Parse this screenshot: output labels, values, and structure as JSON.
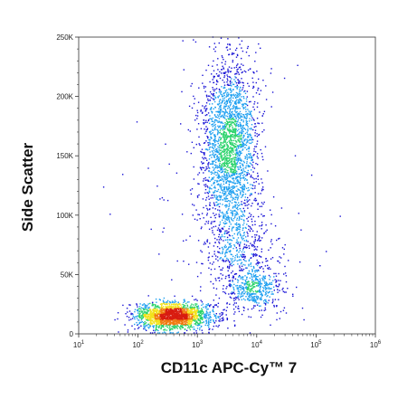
{
  "chart_data": {
    "type": "scatter",
    "subtype": "flow-cytometry-density-dot-plot",
    "title": "",
    "xlabel": "CD11c APC-Cy™ 7",
    "ylabel": "Side Scatter",
    "x_scale": "log",
    "xlim": [
      10,
      1000000
    ],
    "ylim": [
      0,
      250000
    ],
    "x_ticks": [
      {
        "value": 10,
        "base": "10",
        "exp": "1"
      },
      {
        "value": 100,
        "base": "10",
        "exp": "2"
      },
      {
        "value": 1000,
        "base": "10",
        "exp": "3"
      },
      {
        "value": 10000,
        "base": "10",
        "exp": "4"
      },
      {
        "value": 100000,
        "base": "10",
        "exp": "5"
      },
      {
        "value": 1000000,
        "base": "10",
        "exp": "6"
      }
    ],
    "y_ticks": [
      {
        "value": 0,
        "label": "0"
      },
      {
        "value": 50000,
        "label": "50K"
      },
      {
        "value": 100000,
        "label": "100K"
      },
      {
        "value": 150000,
        "label": "150K"
      },
      {
        "value": 200000,
        "label": "200K"
      },
      {
        "value": 250000,
        "label": "250K"
      }
    ],
    "grid": false,
    "legend": "none",
    "density_colormap": [
      "#1a14d6",
      "#1fa0f0",
      "#2ad36a",
      "#f2e21a",
      "#f07a10",
      "#d81c10"
    ],
    "populations": [
      {
        "center_x": 400,
        "center_y": 15000,
        "spread_log_x": 0.33,
        "spread_y": 5500,
        "weight": 0.36
      },
      {
        "center_x": 3500,
        "center_y": 155000,
        "spread_log_x": 0.24,
        "spread_y": 40000,
        "weight": 0.46
      },
      {
        "center_x": 10000,
        "center_y": 38000,
        "spread_log_x": 0.25,
        "spread_y": 9000,
        "weight": 0.09
      },
      {
        "center_x": 5000,
        "center_y": 68000,
        "spread_log_x": 0.32,
        "spread_y": 16000,
        "weight": 0.07
      },
      {
        "center_x": 3000,
        "center_y": 100000,
        "spread_log_x": 0.9,
        "spread_y": 75000,
        "weight": 0.02
      }
    ]
  }
}
